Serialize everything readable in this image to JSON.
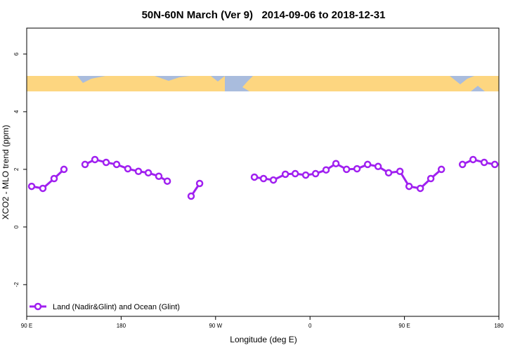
{
  "chart_data": {
    "type": "line",
    "title": "50N-60N March (Ver 9)   2014-09-06 to 2018-12-31",
    "x_label": "Longitude (deg E)",
    "y_label": "XCO2 - MLO trend (ppm)",
    "xlim": [
      90,
      540
    ],
    "ylim": [
      -3.1,
      6.9
    ],
    "xticks": [
      {
        "value": 90,
        "label": "90 E"
      },
      180,
      {
        "value": 270,
        "label": "90 W"
      },
      {
        "value": 360,
        "label": "0"
      },
      {
        "value": 450,
        "label": "90 E"
      },
      {
        "value": 540,
        "label": "180"
      }
    ],
    "yticks": [
      -2,
      0,
      2,
      4,
      6
    ],
    "legend": "bottom-left",
    "series": [
      {
        "name": "Land (Nadir&Glint) and Ocean (Glint)",
        "color": "#a020f0",
        "x": [
          94.7,
          105.4,
          116.1,
          125.5,
          null,
          145.6,
          155.0,
          165.7,
          175.7,
          186.4,
          196.5,
          205.9,
          215.9,
          224.0,
          null,
          246.7,
          254.8,
          null,
          307.0,
          315.7,
          325.1,
          336.5,
          345.9,
          355.9,
          365.3,
          375.3,
          384.7,
          394.8,
          404.8,
          414.9,
          424.9,
          434.9,
          445.7,
          454.4,
          465.1,
          475.1,
          485.2,
          null,
          505.3,
          515.4,
          526.0,
          536.1
        ],
        "values": [
          1.41,
          1.34,
          1.68,
          2.0,
          null,
          2.17,
          2.34,
          2.24,
          2.17,
          2.02,
          1.93,
          1.88,
          1.76,
          1.59,
          null,
          1.07,
          1.51,
          null,
          1.73,
          1.68,
          1.63,
          1.83,
          1.85,
          1.8,
          1.85,
          1.98,
          2.2,
          2.0,
          2.02,
          2.17,
          2.1,
          1.88,
          1.93,
          1.41,
          1.34,
          1.68,
          2.0,
          null,
          2.17,
          2.34,
          2.24,
          2.17
        ]
      }
    ]
  }
}
